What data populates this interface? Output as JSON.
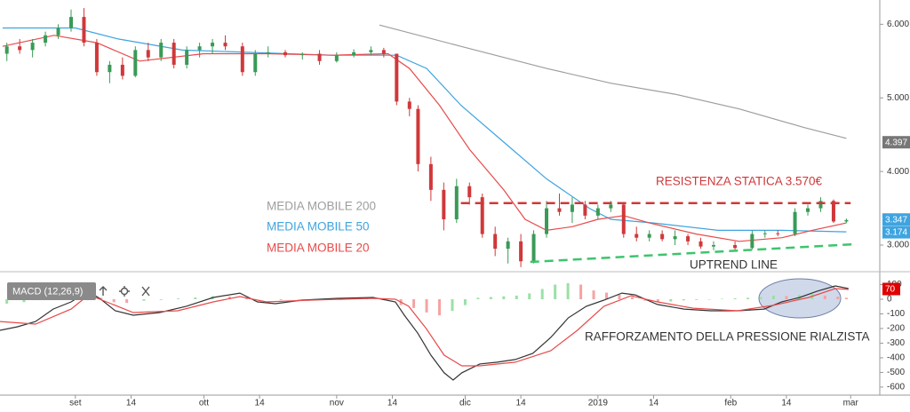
{
  "chart_data": [
    {
      "type": "candlestick",
      "xlim": [
        -17.6,
        187.8
      ],
      "ylim": [
        2.65,
        6.33
      ],
      "yticks": [
        {
          "value": 6,
          "label": "6.000"
        },
        {
          "value": 5,
          "label": "5.000"
        },
        {
          "value": 4,
          "label": "4.000"
        },
        {
          "value": 3,
          "label": "3.000"
        }
      ],
      "up_color": "#3a9a57",
      "down_color": "#d0383a",
      "x": [
        -16,
        -13,
        -10,
        -7,
        -4,
        -1,
        2,
        5,
        8,
        11,
        14,
        17,
        20,
        23,
        26,
        29,
        32,
        35,
        39,
        42,
        45,
        49,
        53,
        57,
        61,
        65,
        69,
        72,
        75,
        78,
        80,
        83,
        86,
        89,
        92,
        95,
        98,
        101,
        104,
        107,
        110,
        113,
        116,
        119,
        122,
        125,
        128,
        131,
        134,
        137,
        140,
        143,
        146,
        149,
        154,
        158,
        161,
        164,
        168,
        171,
        174,
        177,
        180
      ],
      "open": [
        5.6,
        5.7,
        5.65,
        5.75,
        5.85,
        5.95,
        6.1,
        5.75,
        5.35,
        5.45,
        5.3,
        5.65,
        5.55,
        5.75,
        5.45,
        5.65,
        5.7,
        5.75,
        5.7,
        5.35,
        5.6,
        5.62,
        5.58,
        5.6,
        5.5,
        5.58,
        5.62,
        5.65,
        5.6,
        4.95,
        4.85,
        4.1,
        3.75,
        3.35,
        3.8,
        3.65,
        3.15,
        2.95,
        3.05,
        2.78,
        3.15,
        3.5,
        3.45,
        3.55,
        3.4,
        3.5,
        3.55,
        3.15,
        3.1,
        3.15,
        3.08,
        3.12,
        3.05,
        2.98,
        3.0,
        2.96,
        3.15,
        3.16,
        3.15,
        3.45,
        3.5,
        3.6,
        3.32
      ],
      "high": [
        5.75,
        5.8,
        5.8,
        5.9,
        6.0,
        6.2,
        6.22,
        5.8,
        5.5,
        5.55,
        5.7,
        5.75,
        5.8,
        5.8,
        5.7,
        5.75,
        5.8,
        5.85,
        5.75,
        5.65,
        5.7,
        5.65,
        5.62,
        5.65,
        5.62,
        5.66,
        5.7,
        5.68,
        5.6,
        5.0,
        4.9,
        4.2,
        3.85,
        3.9,
        3.85,
        3.7,
        3.25,
        3.1,
        3.15,
        3.2,
        3.6,
        3.7,
        3.65,
        3.6,
        3.55,
        3.6,
        3.58,
        3.25,
        3.2,
        3.2,
        3.2,
        3.15,
        3.1,
        3.05,
        3.05,
        3.2,
        3.2,
        3.2,
        3.5,
        3.55,
        3.65,
        3.62,
        3.36
      ],
      "low": [
        5.5,
        5.6,
        5.55,
        5.7,
        5.8,
        5.9,
        5.7,
        5.3,
        5.2,
        5.25,
        5.28,
        5.5,
        5.5,
        5.4,
        5.4,
        5.55,
        5.6,
        5.65,
        5.3,
        5.3,
        5.55,
        5.55,
        5.52,
        5.45,
        5.48,
        5.55,
        5.58,
        5.55,
        4.9,
        4.75,
        4.0,
        3.6,
        3.2,
        3.3,
        3.55,
        3.1,
        2.85,
        2.75,
        2.7,
        2.75,
        3.1,
        3.4,
        3.3,
        3.35,
        3.35,
        3.45,
        3.1,
        3.05,
        3.05,
        3.05,
        3.0,
        3.0,
        2.95,
        2.93,
        2.92,
        2.94,
        3.1,
        3.12,
        3.12,
        3.4,
        3.45,
        3.3,
        3.3
      ],
      "close": [
        5.7,
        5.65,
        5.75,
        5.85,
        5.95,
        6.1,
        5.75,
        5.35,
        5.45,
        5.3,
        5.65,
        5.55,
        5.75,
        5.45,
        5.65,
        5.7,
        5.75,
        5.7,
        5.35,
        5.6,
        5.62,
        5.58,
        5.6,
        5.5,
        5.58,
        5.62,
        5.65,
        5.6,
        4.95,
        4.85,
        4.1,
        3.75,
        3.35,
        3.8,
        3.65,
        3.15,
        2.95,
        3.05,
        2.78,
        3.15,
        3.5,
        3.45,
        3.55,
        3.4,
        3.5,
        3.55,
        3.15,
        3.1,
        3.15,
        3.08,
        3.12,
        3.05,
        2.98,
        3.0,
        2.96,
        3.15,
        3.16,
        3.15,
        3.45,
        3.5,
        3.6,
        3.32,
        3.34
      ],
      "series": [
        {
          "name": "MEDIA MOBILE 200",
          "color": "#9e9e9e",
          "x": [
            71,
            90,
            110,
            125,
            140,
            155,
            170,
            180
          ],
          "values": [
            5.99,
            5.7,
            5.4,
            5.2,
            5.05,
            4.85,
            4.6,
            4.45
          ]
        },
        {
          "name": "MEDIA MOBILE 50",
          "color": "#3ea4e0",
          "x": [
            -17,
            0,
            10,
            25,
            40,
            60,
            75,
            82,
            90,
            100,
            110,
            120,
            125,
            135,
            150,
            165,
            180
          ],
          "values": [
            5.95,
            5.95,
            5.8,
            5.65,
            5.62,
            5.58,
            5.58,
            5.4,
            4.9,
            4.4,
            3.9,
            3.5,
            3.35,
            3.3,
            3.2,
            3.2,
            3.18
          ]
        },
        {
          "name": "MEDIA MOBILE 20",
          "color": "#e84a4a",
          "x": [
            -17,
            -5,
            5,
            15,
            30,
            45,
            60,
            73,
            78,
            85,
            92,
            100,
            105,
            110,
            116,
            122,
            128,
            134,
            145,
            155,
            165,
            172,
            180
          ],
          "values": [
            5.7,
            5.85,
            5.75,
            5.5,
            5.6,
            5.6,
            5.58,
            5.6,
            5.4,
            4.9,
            4.3,
            3.75,
            3.35,
            3.2,
            3.25,
            3.35,
            3.4,
            3.3,
            3.15,
            3.05,
            3.1,
            3.2,
            3.3
          ]
        }
      ],
      "price_labels": [
        {
          "value": 4.397,
          "label": "4.397",
          "color": "#777777"
        },
        {
          "value": 3.347,
          "label": "3.347",
          "color": "#3ea4e0"
        },
        {
          "value": 3.174,
          "label": "3.174",
          "color": "#3ea4e0"
        }
      ],
      "resistance": {
        "text": "RESISTENZA STATICA 3.570€",
        "value": 3.57,
        "x": [
          90,
          181
        ],
        "color": "#d0383a"
      },
      "uptrend": {
        "text": "UPTREND LINE",
        "x": [
          106.2,
          181.5
        ],
        "values": [
          2.77,
          3.01
        ],
        "color": "#3ec46d"
      }
    },
    {
      "type": "macd",
      "title": "MACD (12,26,9)",
      "xlim": [
        -17.6,
        187.8
      ],
      "ylim": [
        -655,
        182
      ],
      "yticks": [
        100,
        0,
        -100,
        -200,
        -300,
        -400,
        -500,
        -600
      ],
      "xticks": [
        {
          "value": 0,
          "label": "set"
        },
        {
          "value": 13,
          "label": "14"
        },
        {
          "value": 30,
          "label": "ott"
        },
        {
          "value": 43,
          "label": "14"
        },
        {
          "value": 61,
          "label": "nov"
        },
        {
          "value": 74,
          "label": "14"
        },
        {
          "value": 91,
          "label": "dic"
        },
        {
          "value": 104,
          "label": "14"
        },
        {
          "value": 122,
          "label": "2019"
        },
        {
          "value": 135,
          "label": "14"
        },
        {
          "value": 153,
          "label": "feb"
        },
        {
          "value": 166,
          "label": "14"
        },
        {
          "value": 181,
          "label": "mar"
        }
      ],
      "annotation": "RAFFORZAMENTO DELLA PRESSIONE RIALZISTA",
      "last_value": 70,
      "last_value_color": "#e00000",
      "histogram": {
        "up_color": "#9be0a6",
        "down_color": "#f5a3a3",
        "x": [
          -16,
          -12,
          -8,
          -4,
          0,
          3,
          6,
          9,
          12,
          16,
          20,
          24,
          28,
          32,
          36,
          40,
          44,
          48,
          52,
          56,
          60,
          64,
          68,
          72,
          76,
          79,
          82,
          85,
          88,
          91,
          94,
          97,
          100,
          103,
          106,
          109,
          112,
          115,
          118,
          121,
          124,
          127,
          130,
          133,
          136,
          139,
          142,
          145,
          148,
          151,
          154,
          157,
          160,
          163,
          166,
          169,
          172,
          175,
          178,
          180
        ],
        "values": [
          -30,
          -20,
          10,
          30,
          45,
          25,
          10,
          -20,
          -25,
          -10,
          -5,
          5,
          12,
          20,
          18,
          10,
          0,
          -5,
          -3,
          2,
          4,
          5,
          4,
          -5,
          -40,
          -60,
          -90,
          -110,
          -80,
          -40,
          10,
          15,
          20,
          25,
          40,
          70,
          100,
          110,
          100,
          60,
          45,
          30,
          15,
          -10,
          -20,
          -15,
          -8,
          -5,
          -3,
          3,
          6,
          10,
          15,
          25,
          22,
          30,
          35,
          25,
          18,
          10
        ]
      },
      "series": [
        {
          "name": "MACD",
          "color": "#333333",
          "x": [
            -17.6,
            -13.5,
            -9.3,
            -5.2,
            -1,
            3.1,
            6.2,
            9.3,
            13.5,
            19.7,
            25.9,
            32.2,
            38.4,
            42.5,
            46.7,
            52.9,
            61.2,
            69.5,
            74.7,
            76.8,
            79.9,
            83.0,
            86.1,
            88.2,
            90.2,
            94.4,
            98.5,
            102.7,
            106.8,
            111.0,
            115.1,
            119.3,
            123.4,
            127.6,
            130.7,
            135.9,
            142.1,
            148.3,
            154.6,
            160.8,
            164.9,
            169.1,
            173.2,
            177.4,
            180.5
          ],
          "values": [
            -212,
            -188,
            -152,
            -67,
            -18,
            55,
            -6,
            -79,
            -109,
            -91,
            -48,
            12,
            42,
            -18,
            -30,
            -6,
            6,
            12,
            -18,
            -109,
            -230,
            -382,
            -503,
            -552,
            -503,
            -442,
            -430,
            -412,
            -370,
            -261,
            -127,
            -48,
            -6,
            42,
            30,
            -36,
            -67,
            -79,
            -79,
            -67,
            -18,
            12,
            55,
            91,
            73
          ]
        },
        {
          "name": "Signal",
          "color": "#e84a4a",
          "x": [
            -17.6,
            -9.3,
            -1,
            3.1,
            7.3,
            13.5,
            23.9,
            32.2,
            38.4,
            44.6,
            55.0,
            69.5,
            74.7,
            77.8,
            81.9,
            86.1,
            90.2,
            94.4,
            102.7,
            111.0,
            117.2,
            123.4,
            129.7,
            135.9,
            144.2,
            154.6,
            162.9,
            171.2,
            177.4,
            180.5
          ],
          "values": [
            -152,
            -170,
            -67,
            30,
            -18,
            -91,
            -79,
            -18,
            18,
            -18,
            -6,
            6,
            0,
            -48,
            -200,
            -382,
            -455,
            -455,
            -430,
            -352,
            -212,
            -48,
            24,
            -18,
            -61,
            -79,
            -42,
            12,
            73,
            67
          ]
        }
      ]
    }
  ]
}
